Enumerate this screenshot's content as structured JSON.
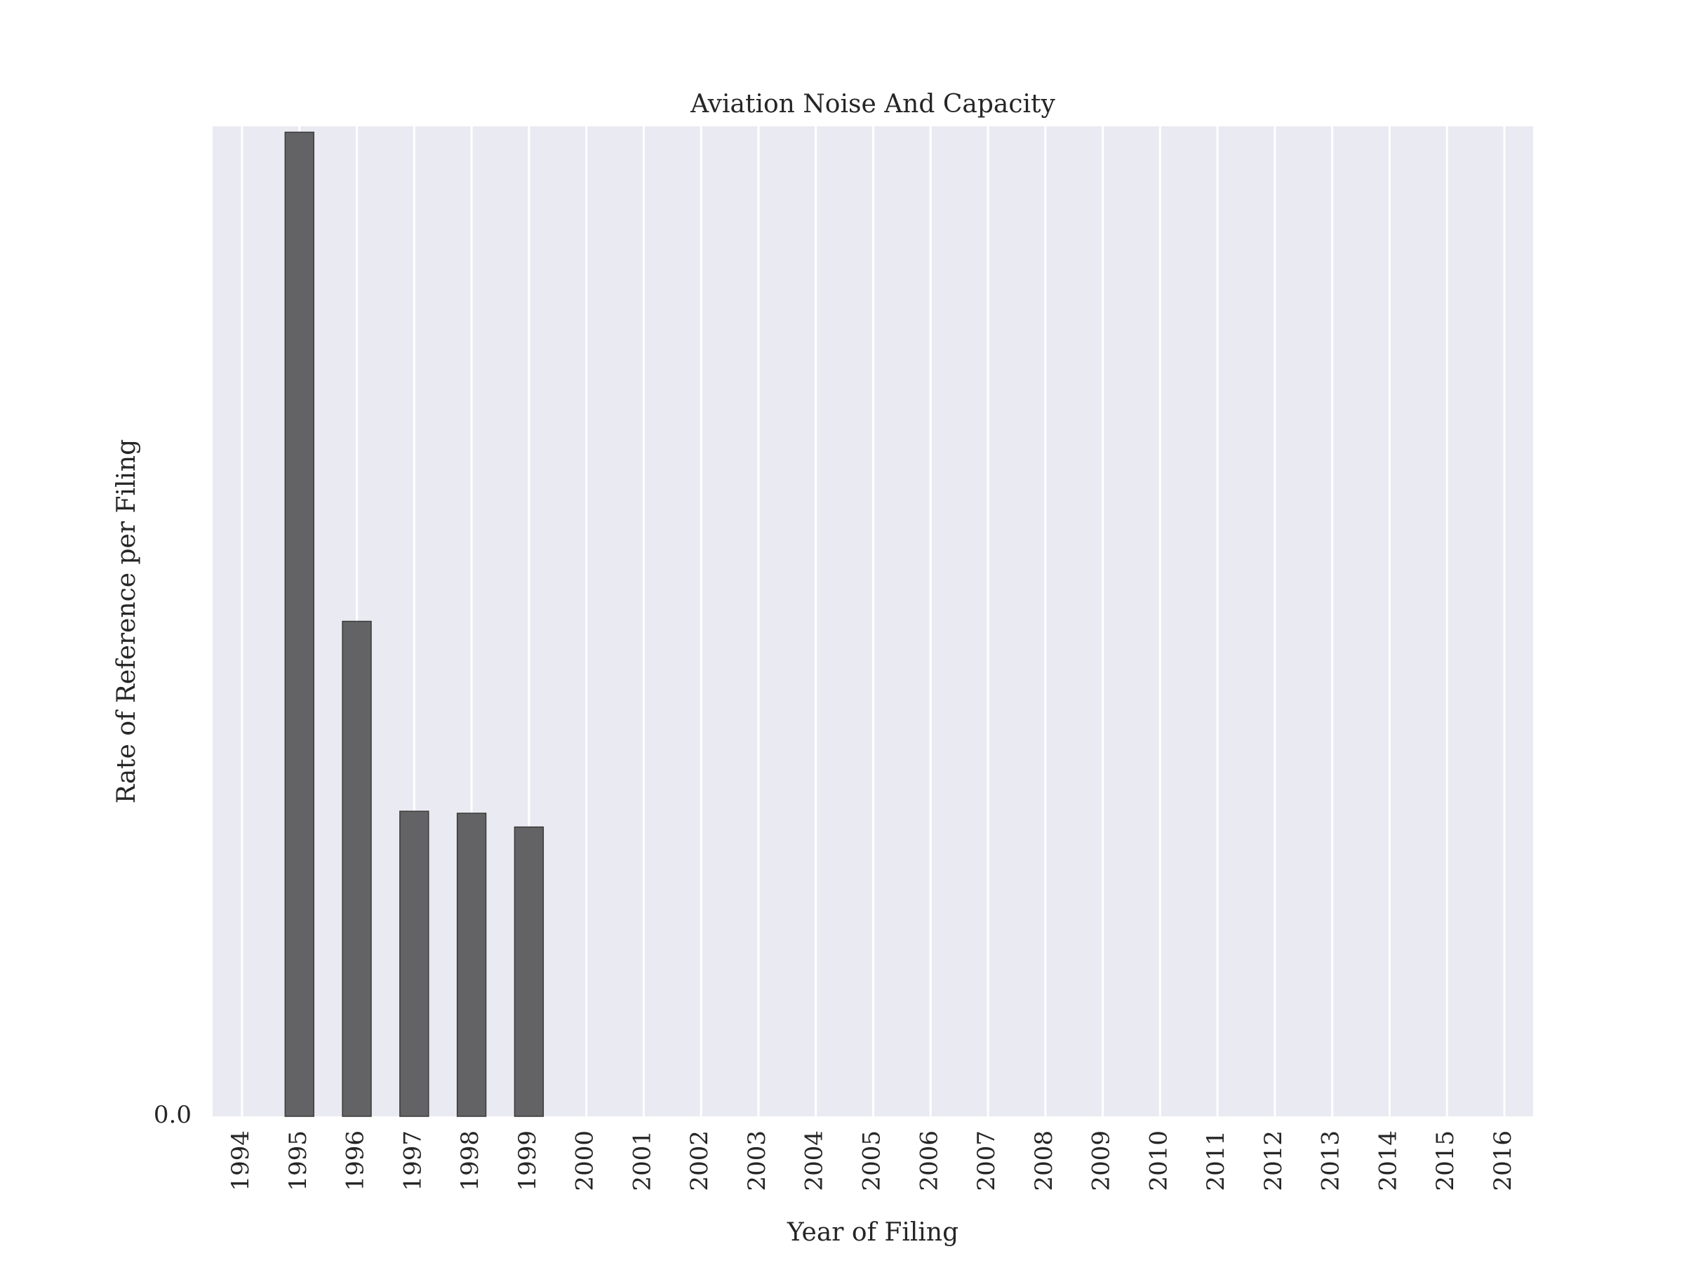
{
  "chart_data": {
    "type": "bar",
    "title": "Aviation Noise And Capacity",
    "xlabel": "Year of Filing",
    "ylabel": "Rate of Reference per Filing",
    "categories": [
      "1994",
      "1995",
      "1996",
      "1997",
      "1998",
      "1999",
      "2000",
      "2001",
      "2002",
      "2003",
      "2004",
      "2005",
      "2006",
      "2007",
      "2008",
      "2009",
      "2010",
      "2011",
      "2012",
      "2013",
      "2014",
      "2015",
      "2016"
    ],
    "values": [
      0,
      1.0,
      0.503,
      0.31,
      0.308,
      0.294,
      0,
      0,
      0,
      0,
      0,
      0,
      0,
      0,
      0,
      0,
      0,
      0,
      0,
      0,
      0,
      0,
      0
    ],
    "ylim": [
      0,
      1.006
    ],
    "yticks": [
      "0.0"
    ],
    "grid": true,
    "legend": "none",
    "colors": {
      "plot_background": "#eaeaf2",
      "grid": "#ffffff",
      "bar_fill": "#636365",
      "bar_edge": "#3a3a3a",
      "text": "#262626"
    }
  }
}
